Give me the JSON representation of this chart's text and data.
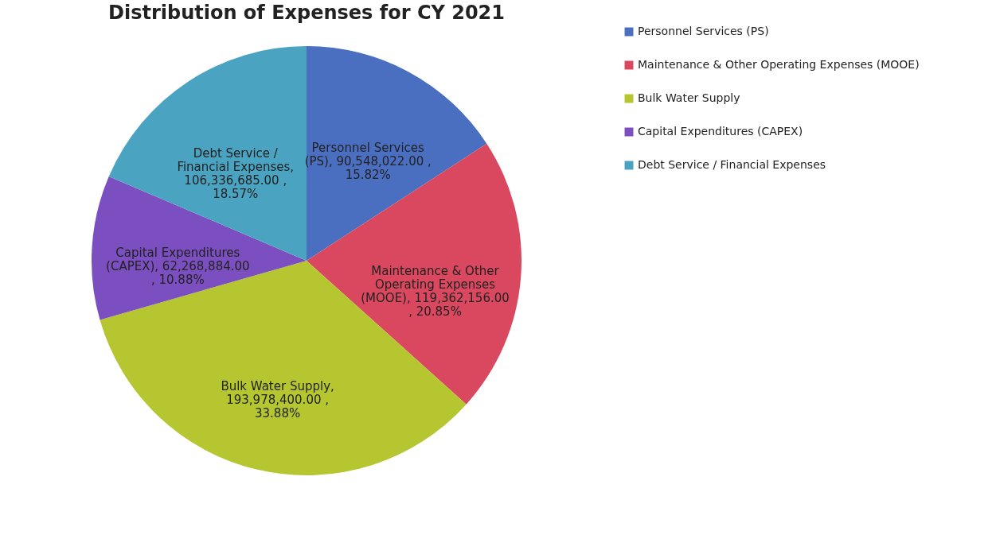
{
  "chart_data": {
    "type": "pie",
    "title": "Distribution of Expenses for CY 2021",
    "categories": [
      "Personnel Services (PS)",
      "Maintenance & Other Operating Expenses  (MOOE)",
      "Bulk Water Supply",
      "Capital Expenditures (CAPEX)",
      "Debt Service / Financial Expenses"
    ],
    "values": [
      90548022.0,
      119362156.0,
      193978400.0,
      62268884.0,
      106336685.0
    ],
    "colors": [
      "#4a6fc1",
      "#d9485f",
      "#b5c630",
      "#7b4fbf",
      "#4aa3c0"
    ],
    "value_labels": [
      "Personnel Services (PS),  90,548,022.00 , 15.82%",
      "Maintenance & Other Operating Expenses  (MOOE), 119,362,156.00 , 20.85%",
      "Bulk Water Supply, 193,978,400.00 , 33.88%",
      "Capital Expenditures (CAPEX), 62,268,884.00 , 10.88%",
      "Debt Service / Financial Expenses, 106,336,685.00 , 18.57%"
    ],
    "legend": "right"
  }
}
